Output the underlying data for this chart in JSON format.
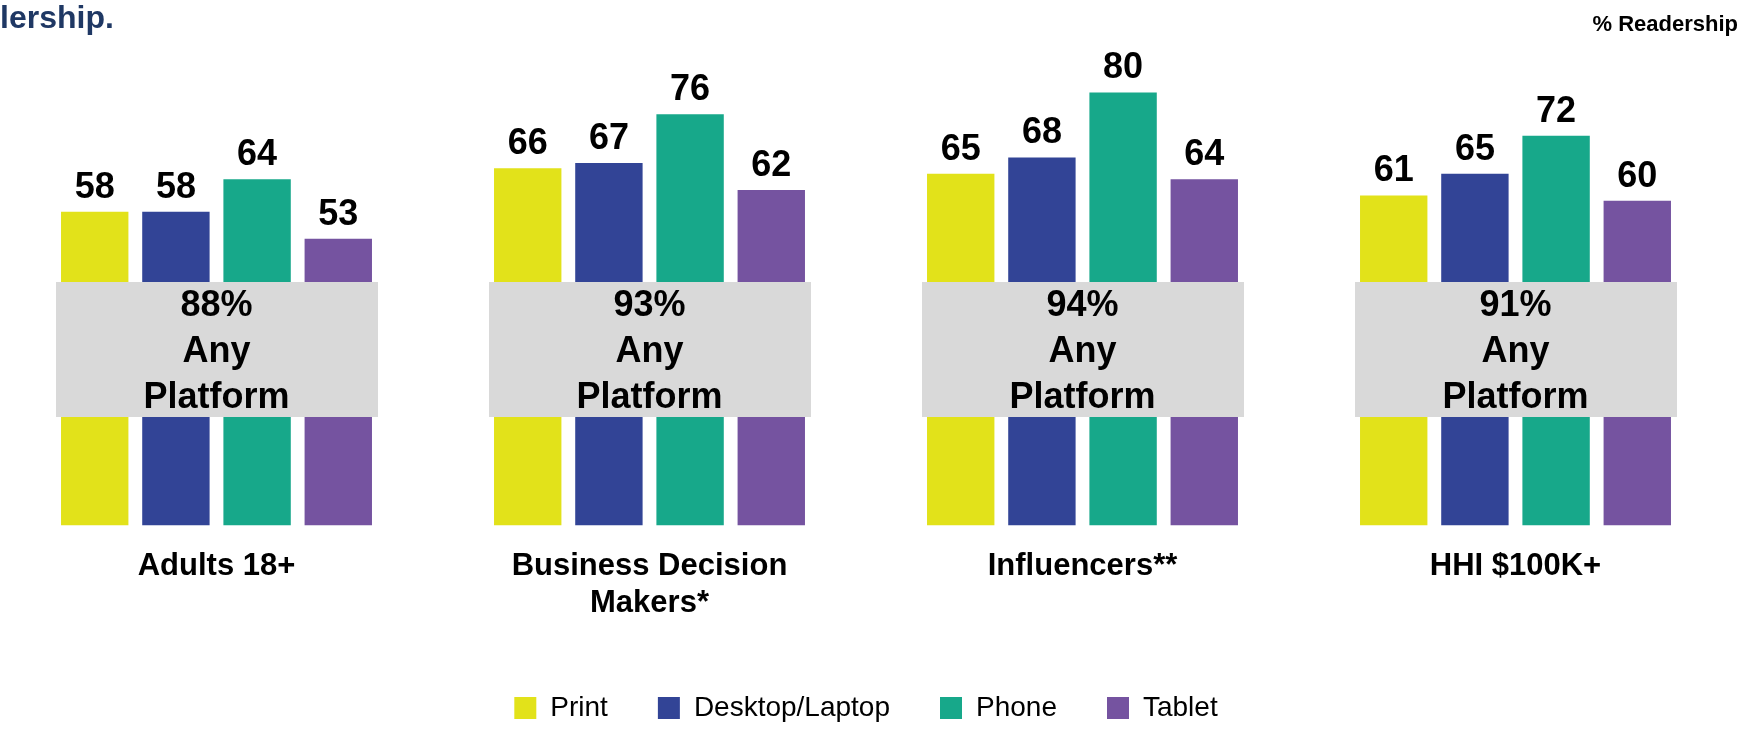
{
  "chart_data": {
    "type": "bar",
    "title": "lership.",
    "ylabel": "% Readership",
    "categories": [
      "Adults 18+",
      "Business Decision\nMakers*",
      "Influencers**",
      "HHI $100K+"
    ],
    "series": [
      {
        "name": "Print",
        "color": "#e2e21a",
        "values": [
          58,
          66,
          65,
          61
        ]
      },
      {
        "name": "Desktop/Laptop",
        "color": "#324496",
        "values": [
          58,
          67,
          68,
          65
        ]
      },
      {
        "name": "Phone",
        "color": "#17a88a",
        "values": [
          64,
          76,
          80,
          72
        ]
      },
      {
        "name": "Tablet",
        "color": "#7553a0",
        "values": [
          53,
          62,
          64,
          60
        ]
      }
    ],
    "data_labels": true,
    "legend": "bottom",
    "grid": false,
    "annotations": [
      "88%\nAny\nPlatform",
      "93%\nAny\nPlatform",
      "94%\nAny\nPlatform",
      "91%\nAny\nPlatform"
    ]
  }
}
